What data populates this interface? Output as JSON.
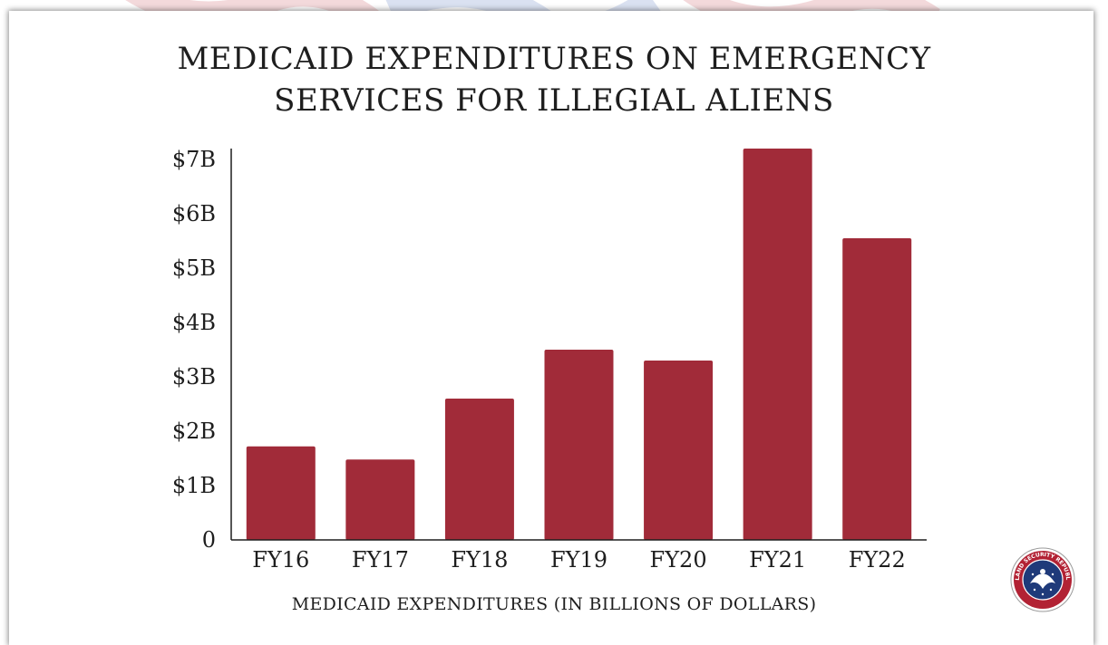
{
  "chart_data": {
    "type": "bar",
    "title": "MEDICAID EXPENDITURES ON EMERGENCY SERVICES FOR ILLEGIAL ALIENS",
    "title_lines": [
      "MEDICAID EXPENDITURES ON EMERGENCY",
      "SERVICES FOR ILLEGIAL ALIENS"
    ],
    "xlabel": "MEDICAID EXPENDITURES (IN BILLIONS OF DOLLARS)",
    "ylabel": "",
    "categories": [
      "FY16",
      "FY17",
      "FY18",
      "FY19",
      "FY20",
      "FY21",
      "FY22"
    ],
    "values": [
      1.72,
      1.48,
      2.6,
      3.5,
      3.3,
      7.2,
      5.55
    ],
    "ylim": [
      0,
      7.2
    ],
    "y_ticks": [
      {
        "value": 0,
        "label": "0"
      },
      {
        "value": 1,
        "label": "$1B"
      },
      {
        "value": 2,
        "label": "$2B"
      },
      {
        "value": 3,
        "label": "$3B"
      },
      {
        "value": 4,
        "label": "$4B"
      },
      {
        "value": 5,
        "label": "$5B"
      },
      {
        "value": 6,
        "label": "$6B"
      },
      {
        "value": 7,
        "label": "$7B"
      }
    ],
    "grid": false,
    "legend": "none",
    "bar_color": "#a12b39"
  },
  "logo": {
    "icon": "homeland-security-republicans-seal-icon",
    "text": "HOMELAND SECURITY REPUBLICANS",
    "colors": {
      "ring": "#b22234",
      "center": "#1f3a7a"
    }
  }
}
